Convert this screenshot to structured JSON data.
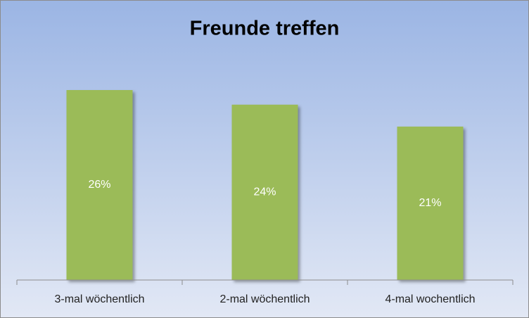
{
  "chart_data": {
    "type": "bar",
    "title": "Freunde treffen",
    "categories": [
      "3-mal wöchentlich",
      "2-mal wöchentlich",
      "4-mal wochentlich"
    ],
    "values": [
      26,
      24,
      21
    ],
    "value_labels": [
      "26%",
      "24%",
      "21%"
    ],
    "color": "#9bbb59"
  }
}
